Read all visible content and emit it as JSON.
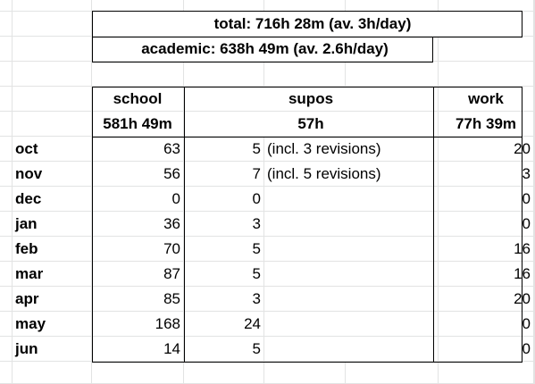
{
  "summary": {
    "total": "total: 716h 28m (av. 3h/day)",
    "academic": "academic: 638h 49m (av. 2.6h/day)"
  },
  "headers": {
    "school": "school",
    "supos": "supos",
    "work": "work"
  },
  "totals": {
    "school": "581h 49m",
    "supos": "57h",
    "work": "77h 39m"
  },
  "rows": [
    {
      "month": "oct",
      "school": "63",
      "supos": "5",
      "note": "(incl. 3 revisions)",
      "work": "20"
    },
    {
      "month": "nov",
      "school": "56",
      "supos": "7",
      "note": "(incl. 5 revisions)",
      "work": "3"
    },
    {
      "month": "dec",
      "school": "0",
      "supos": "0",
      "note": "",
      "work": "0"
    },
    {
      "month": "jan",
      "school": "36",
      "supos": "3",
      "note": "",
      "work": "0"
    },
    {
      "month": "feb",
      "school": "70",
      "supos": "5",
      "note": "",
      "work": "16"
    },
    {
      "month": "mar",
      "school": "87",
      "supos": "5",
      "note": "",
      "work": "16"
    },
    {
      "month": "apr",
      "school": "85",
      "supos": "3",
      "note": "",
      "work": "20"
    },
    {
      "month": "may",
      "school": "168",
      "supos": "24",
      "note": "",
      "work": "0"
    },
    {
      "month": "jun",
      "school": "14",
      "supos": "5",
      "note": "",
      "work": "0"
    }
  ]
}
